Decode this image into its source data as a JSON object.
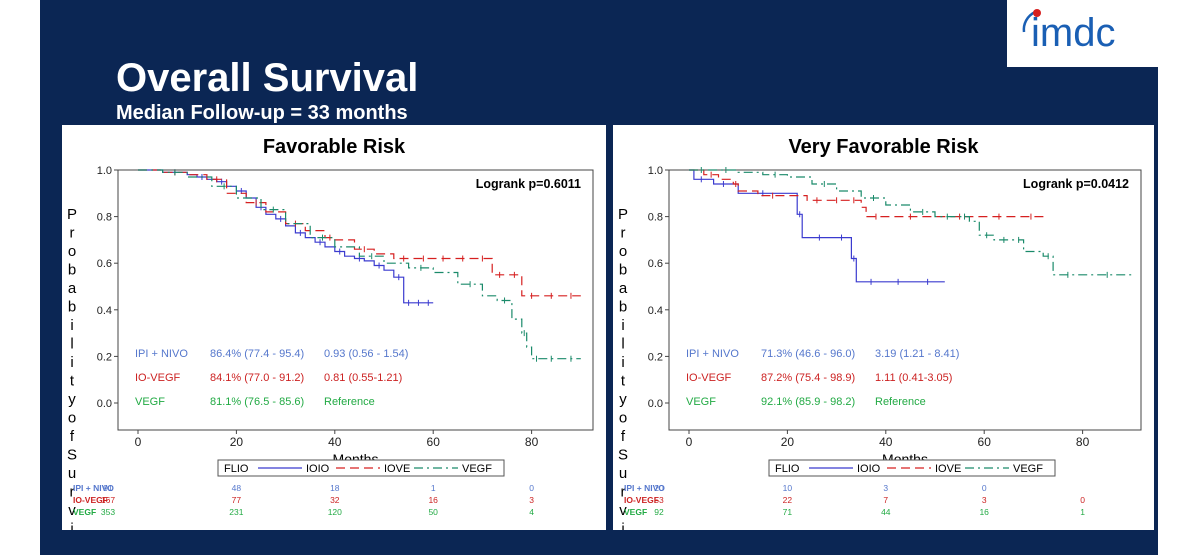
{
  "slide": {
    "title": "Overall Survival",
    "subtitle": "Median Follow-up = 33 months",
    "logo_text": "imdc"
  },
  "colors": {
    "navy": "#0b2654",
    "logo": "#1a5fb4",
    "ipi_nivo": "#3b3bcf",
    "io_vegf": "#d62020",
    "vegf": "#1a8a6a",
    "stats_blue": "#5577cc",
    "stats_red": "#cc2222",
    "stats_green": "#22aa44"
  },
  "chart_data": [
    {
      "type": "line",
      "title": "Favorable Risk",
      "logrank": "Logrank p=0.6011",
      "xlabel": "Months",
      "ylabel": "Probability of Survival",
      "ylabel_visible": "ProbabilityofSurvi",
      "xlim": [
        0,
        90
      ],
      "ylim": [
        0,
        1
      ],
      "xticks": [
        "0",
        "20",
        "40",
        "60",
        "80"
      ],
      "yticks": [
        "0.0",
        "0.2",
        "0.4",
        "0.6",
        "0.8",
        "1.0"
      ],
      "series": [
        {
          "name": "IPI + NIVO",
          "style": "solid",
          "x": [
            0,
            5,
            10,
            12,
            14,
            16,
            18,
            20,
            22,
            24,
            26,
            28,
            30,
            32,
            34,
            36,
            38,
            40,
            42,
            44,
            46,
            48,
            50,
            52,
            54,
            56,
            58,
            60
          ],
          "y": [
            1.0,
            0.99,
            0.98,
            0.97,
            0.96,
            0.95,
            0.93,
            0.91,
            0.88,
            0.84,
            0.81,
            0.79,
            0.76,
            0.73,
            0.71,
            0.69,
            0.67,
            0.65,
            0.63,
            0.62,
            0.61,
            0.59,
            0.57,
            0.54,
            0.43,
            0.43,
            0.43,
            0.43
          ]
        },
        {
          "name": "IO-VEGF",
          "style": "dashed",
          "x": [
            0,
            5,
            10,
            14,
            18,
            22,
            26,
            30,
            34,
            38,
            40,
            44,
            48,
            52,
            56,
            60,
            64,
            68,
            72,
            75,
            78,
            82,
            86,
            90
          ],
          "y": [
            1.0,
            0.99,
            0.98,
            0.96,
            0.9,
            0.86,
            0.82,
            0.77,
            0.74,
            0.71,
            0.7,
            0.66,
            0.64,
            0.62,
            0.62,
            0.62,
            0.62,
            0.62,
            0.55,
            0.55,
            0.46,
            0.46,
            0.46,
            0.46
          ]
        },
        {
          "name": "VEGF",
          "style": "dashdot",
          "x": [
            0,
            5,
            10,
            15,
            20,
            25,
            30,
            35,
            40,
            45,
            50,
            55,
            60,
            65,
            70,
            73,
            76,
            78,
            79,
            80,
            82,
            86,
            90
          ],
          "y": [
            1.0,
            0.99,
            0.97,
            0.93,
            0.88,
            0.83,
            0.77,
            0.71,
            0.67,
            0.63,
            0.6,
            0.58,
            0.56,
            0.51,
            0.46,
            0.44,
            0.36,
            0.3,
            0.24,
            0.19,
            0.19,
            0.19,
            0.19
          ]
        }
      ],
      "stats": [
        {
          "label": "IPI + NIVO",
          "rate": "86.4% (77.4 - 95.4)",
          "hr": "0.93 (0.56 - 1.54)"
        },
        {
          "label": "IO-VEGF",
          "rate": "84.1% (77.0 - 91.2)",
          "hr": "0.81 (0.55-1.21)"
        },
        {
          "label": "VEGF",
          "rate": "81.1% (76.5 - 85.6)",
          "hr": "Reference"
        }
      ],
      "legend": {
        "title": "FLIO",
        "entries": [
          "IOIO",
          "IOVE",
          "VEGF"
        ]
      },
      "risk_table": [
        {
          "label": "IPI + NIVO",
          "values": [
            "91",
            "48",
            "18",
            "1",
            "0"
          ]
        },
        {
          "label": "IO-VEGF",
          "values": [
            "167",
            "77",
            "32",
            "16",
            "3"
          ]
        },
        {
          "label": "VEGF",
          "values": [
            "353",
            "231",
            "120",
            "50",
            "4"
          ]
        }
      ]
    },
    {
      "type": "line",
      "title": "Very Favorable Risk",
      "logrank": "Logrank p=0.0412",
      "xlabel": "Months",
      "ylabel": "Probability of Survival",
      "ylabel_visible": "ProbabilityofSurvi",
      "xlim": [
        0,
        90
      ],
      "ylim": [
        0,
        1
      ],
      "xticks": [
        "0",
        "20",
        "40",
        "60",
        "80"
      ],
      "yticks": [
        "0.0",
        "0.2",
        "0.4",
        "0.6",
        "0.8",
        "1.0"
      ],
      "series": [
        {
          "name": "IPI + NIVO",
          "style": "solid",
          "x": [
            0,
            1,
            4,
            5,
            9,
            10,
            20,
            22,
            23,
            30,
            32,
            33,
            34,
            40,
            45,
            52
          ],
          "y": [
            1.0,
            0.96,
            0.96,
            0.94,
            0.94,
            0.9,
            0.9,
            0.81,
            0.71,
            0.71,
            0.71,
            0.62,
            0.52,
            0.52,
            0.52,
            0.52
          ]
        },
        {
          "name": "IO-VEGF",
          "style": "dashed",
          "x": [
            0,
            3,
            6,
            9,
            10,
            14,
            20,
            24,
            28,
            32,
            35,
            36,
            40,
            50,
            60,
            66,
            73
          ],
          "y": [
            1.0,
            0.98,
            0.96,
            0.94,
            0.91,
            0.89,
            0.89,
            0.87,
            0.87,
            0.87,
            0.84,
            0.8,
            0.8,
            0.8,
            0.8,
            0.8,
            0.8
          ]
        },
        {
          "name": "VEGF",
          "style": "dashdot",
          "x": [
            0,
            5,
            10,
            15,
            20,
            25,
            30,
            35,
            40,
            45,
            50,
            55,
            57,
            59,
            62,
            66,
            68,
            72,
            74,
            80,
            90
          ],
          "y": [
            1.0,
            1.0,
            0.99,
            0.98,
            0.97,
            0.94,
            0.91,
            0.88,
            0.85,
            0.82,
            0.8,
            0.8,
            0.78,
            0.72,
            0.7,
            0.7,
            0.65,
            0.63,
            0.55,
            0.55,
            0.55
          ]
        }
      ],
      "stats": [
        {
          "label": "IPI + NIVO",
          "rate": "71.3% (46.6 - 96.0)",
          "hr": "3.19 (1.21 - 8.41)"
        },
        {
          "label": "IO-VEGF",
          "rate": "87.2% (75.4 - 98.9)",
          "hr": "1.11 (0.41-3.05)"
        },
        {
          "label": "VEGF",
          "rate": "92.1% (85.9 - 98.2)",
          "hr": "Reference"
        }
      ],
      "legend": {
        "title": "FLIO",
        "entries": [
          "IOIO",
          "IOVE",
          "VEGF"
        ]
      },
      "risk_table": [
        {
          "label": "IPI + NIVO",
          "values": [
            "20",
            "10",
            "3",
            "0",
            ""
          ]
        },
        {
          "label": "IO-VEGF",
          "values": [
            "53",
            "22",
            "7",
            "3",
            "0"
          ]
        },
        {
          "label": "VEGF",
          "values": [
            "92",
            "71",
            "44",
            "16",
            "1"
          ]
        }
      ]
    }
  ]
}
